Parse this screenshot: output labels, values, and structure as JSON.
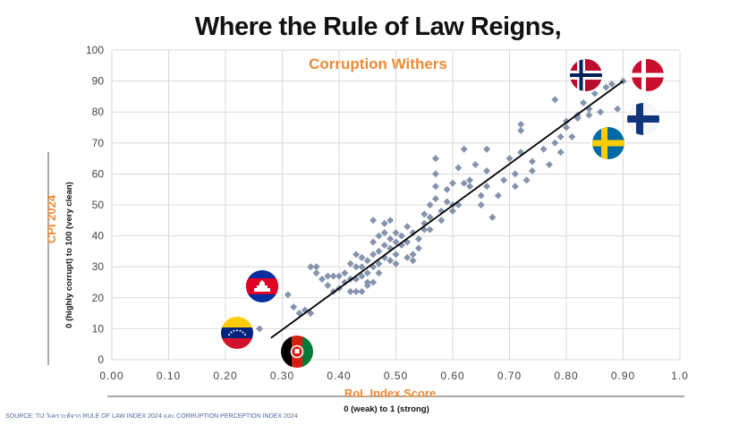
{
  "title": "Where the Rule of Law Reigns,",
  "subtitle": "Corruption Withers",
  "source": "SOURCE: TIJ วิเคราะห์จาก RULE OF LAW INDEX 2024 และ CORRUPTION PERCEPTION INDEX 2024",
  "colors": {
    "title": "#111111",
    "accent": "#ee8a33",
    "points": "#8494ad",
    "grid": "#d9d9d9",
    "trend": "#000000"
  },
  "chart_data": {
    "type": "scatter",
    "title": "Where the Rule of Law Reigns, Corruption Withers",
    "xlabel": "RoL Index Score",
    "xlabel_sub": "0 (weak) to 1 (strong)",
    "ylabel": "CPI 2024",
    "ylabel_sub": "0 (highly corrupt) to 100 (very clean)",
    "xlim": [
      0,
      1
    ],
    "ylim": [
      0,
      100
    ],
    "xticks": [
      "0.00",
      "0.10",
      "0.20",
      "0.30",
      "0.40",
      "0.50",
      "0.60",
      "0.70",
      "0.80",
      "0.90",
      "1.0"
    ],
    "yticks": [
      "0",
      "10",
      "20",
      "30",
      "40",
      "50",
      "60",
      "70",
      "80",
      "90",
      "100"
    ],
    "grid": true,
    "trendline": {
      "x": [
        0.28,
        0.9
      ],
      "y": [
        7,
        90
      ]
    },
    "points": [
      [
        0.26,
        10
      ],
      [
        0.31,
        21
      ],
      [
        0.32,
        17
      ],
      [
        0.33,
        15
      ],
      [
        0.34,
        16
      ],
      [
        0.35,
        15
      ],
      [
        0.35,
        30
      ],
      [
        0.36,
        30
      ],
      [
        0.36,
        28
      ],
      [
        0.37,
        26
      ],
      [
        0.38,
        27
      ],
      [
        0.38,
        24
      ],
      [
        0.39,
        27
      ],
      [
        0.39,
        22
      ],
      [
        0.4,
        23
      ],
      [
        0.4,
        27
      ],
      [
        0.41,
        28
      ],
      [
        0.41,
        25
      ],
      [
        0.42,
        31
      ],
      [
        0.42,
        26
      ],
      [
        0.42,
        22
      ],
      [
        0.43,
        34
      ],
      [
        0.43,
        30
      ],
      [
        0.43,
        26
      ],
      [
        0.43,
        22
      ],
      [
        0.44,
        33
      ],
      [
        0.44,
        30
      ],
      [
        0.44,
        27
      ],
      [
        0.44,
        22
      ],
      [
        0.45,
        32
      ],
      [
        0.45,
        28
      ],
      [
        0.45,
        25
      ],
      [
        0.45,
        24
      ],
      [
        0.46,
        45
      ],
      [
        0.46,
        38
      ],
      [
        0.46,
        34
      ],
      [
        0.46,
        30
      ],
      [
        0.46,
        25
      ],
      [
        0.47,
        40
      ],
      [
        0.47,
        35
      ],
      [
        0.47,
        31
      ],
      [
        0.47,
        28
      ],
      [
        0.48,
        44
      ],
      [
        0.48,
        41
      ],
      [
        0.48,
        37
      ],
      [
        0.48,
        33
      ],
      [
        0.49,
        45
      ],
      [
        0.49,
        39
      ],
      [
        0.49,
        36
      ],
      [
        0.49,
        32
      ],
      [
        0.5,
        41
      ],
      [
        0.5,
        38
      ],
      [
        0.5,
        34
      ],
      [
        0.5,
        31
      ],
      [
        0.51,
        37
      ],
      [
        0.51,
        40
      ],
      [
        0.52,
        33
      ],
      [
        0.52,
        43
      ],
      [
        0.52,
        38
      ],
      [
        0.53,
        34
      ],
      [
        0.53,
        32
      ],
      [
        0.53,
        41
      ],
      [
        0.54,
        39
      ],
      [
        0.54,
        36
      ],
      [
        0.55,
        47
      ],
      [
        0.55,
        44
      ],
      [
        0.55,
        42
      ],
      [
        0.56,
        50
      ],
      [
        0.56,
        46
      ],
      [
        0.56,
        42
      ],
      [
        0.57,
        65
      ],
      [
        0.57,
        60
      ],
      [
        0.57,
        56
      ],
      [
        0.57,
        52
      ],
      [
        0.58,
        48
      ],
      [
        0.58,
        45
      ],
      [
        0.59,
        55
      ],
      [
        0.59,
        51
      ],
      [
        0.6,
        57
      ],
      [
        0.6,
        50
      ],
      [
        0.6,
        48
      ],
      [
        0.61,
        62
      ],
      [
        0.61,
        50
      ],
      [
        0.62,
        68
      ],
      [
        0.62,
        57
      ],
      [
        0.63,
        56
      ],
      [
        0.63,
        58
      ],
      [
        0.64,
        63
      ],
      [
        0.65,
        53
      ],
      [
        0.65,
        50
      ],
      [
        0.66,
        68
      ],
      [
        0.66,
        61
      ],
      [
        0.66,
        56
      ],
      [
        0.67,
        46
      ],
      [
        0.68,
        53
      ],
      [
        0.69,
        58
      ],
      [
        0.7,
        65
      ],
      [
        0.71,
        60
      ],
      [
        0.71,
        56
      ],
      [
        0.72,
        76
      ],
      [
        0.72,
        74
      ],
      [
        0.72,
        67
      ],
      [
        0.73,
        58
      ],
      [
        0.74,
        64
      ],
      [
        0.74,
        61
      ],
      [
        0.76,
        68
      ],
      [
        0.77,
        63
      ],
      [
        0.78,
        84
      ],
      [
        0.78,
        70
      ],
      [
        0.79,
        72
      ],
      [
        0.79,
        67
      ],
      [
        0.8,
        77
      ],
      [
        0.8,
        75
      ],
      [
        0.81,
        72
      ],
      [
        0.82,
        79
      ],
      [
        0.82,
        78
      ],
      [
        0.83,
        83
      ],
      [
        0.84,
        81
      ],
      [
        0.84,
        79
      ],
      [
        0.85,
        86
      ],
      [
        0.86,
        80
      ],
      [
        0.87,
        88
      ],
      [
        0.88,
        89
      ],
      [
        0.89,
        81
      ],
      [
        0.9,
        90
      ]
    ],
    "flag_markers": [
      {
        "country": "Norway",
        "flag": "norway-flag"
      },
      {
        "country": "Denmark",
        "flag": "denmark-flag"
      },
      {
        "country": "Finland",
        "flag": "finland-flag"
      },
      {
        "country": "Sweden",
        "flag": "sweden-flag"
      },
      {
        "country": "Cambodia",
        "flag": "cambodia-flag"
      },
      {
        "country": "Venezuela",
        "flag": "venezuela-flag"
      },
      {
        "country": "Afghanistan",
        "flag": "afghanistan-flag"
      }
    ]
  }
}
